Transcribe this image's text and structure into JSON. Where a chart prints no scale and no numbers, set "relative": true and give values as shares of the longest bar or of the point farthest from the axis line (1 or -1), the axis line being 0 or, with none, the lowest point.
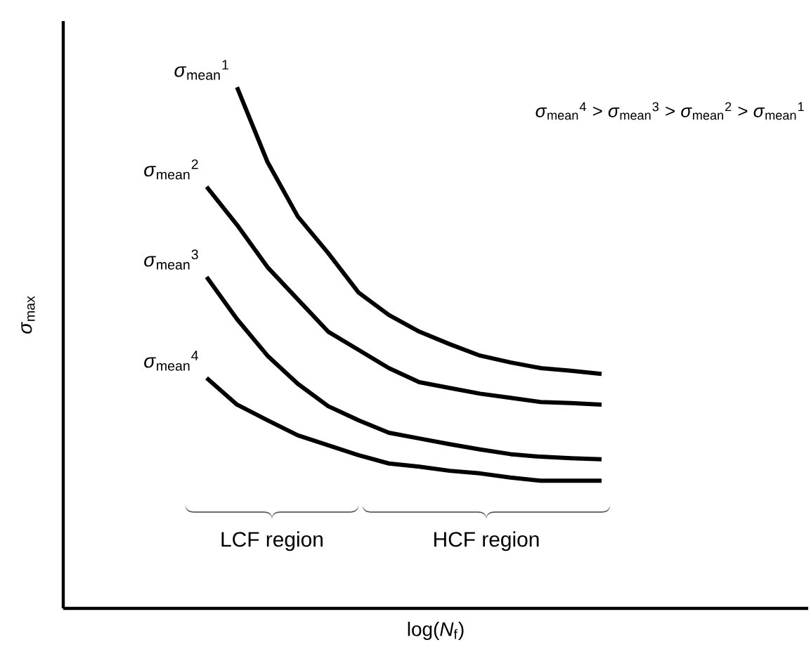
{
  "chart_data": {
    "type": "line",
    "relative": true,
    "tick_labels": false,
    "marker": "none",
    "line_style": "solid",
    "xlabel": "log(*N*$_{f}$)",
    "annotations": [
      "*σ*$_{mean}$$^{4}$ > *σ*$_{mean}$$^{3}$ > *σ*$_{mean}$$^{2}$ > *σ*$_{mean}$$^{1}$",
      "*σ*$_{max}$",
      "LCF region",
      "HCF region"
    ],
    "categories": [
      null,
      null,
      null,
      null,
      null,
      null,
      null,
      null,
      null,
      null,
      null,
      null,
      null,
      null
    ],
    "series": [
      {
        "name": "*σ*$_{mean}$$^{1}$",
        "color": "#000000",
        "values": [
          null,
          1.0,
          0.857,
          0.752,
          0.682,
          0.606,
          0.563,
          0.531,
          0.507,
          0.485,
          0.472,
          0.461,
          0.456,
          0.45
        ]
      },
      {
        "name": "*σ*$_{mean}$$^{2}$",
        "color": "#000000",
        "values": [
          0.809,
          0.736,
          0.655,
          0.593,
          0.531,
          0.496,
          0.461,
          0.434,
          0.423,
          0.412,
          0.404,
          0.396,
          0.394,
          0.391
        ]
      },
      {
        "name": "*σ*$_{mean}$$^{3}$",
        "color": "#000000",
        "values": [
          0.636,
          0.555,
          0.485,
          0.431,
          0.388,
          0.361,
          0.337,
          0.326,
          0.315,
          0.305,
          0.296,
          0.291,
          0.288,
          0.286
        ]
      },
      {
        "name": "*σ*$_{mean}$$^{4}$",
        "color": "#000000",
        "values": [
          0.442,
          0.391,
          0.361,
          0.332,
          0.313,
          0.294,
          0.278,
          0.272,
          0.264,
          0.259,
          0.251,
          0.245,
          0.245,
          0.245
        ]
      }
    ]
  }
}
